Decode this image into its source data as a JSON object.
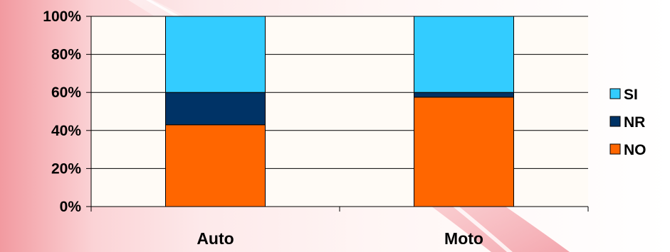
{
  "chart_data": {
    "type": "bar",
    "stacked": true,
    "percent": true,
    "categories": [
      "Auto",
      "Moto"
    ],
    "series": [
      {
        "name": "NO",
        "values": [
          43,
          57.5
        ],
        "color": "#ff6600"
      },
      {
        "name": "NR",
        "values": [
          17,
          2.5
        ],
        "color": "#003366"
      },
      {
        "name": "SI",
        "values": [
          40,
          40
        ],
        "color": "#33ccff"
      }
    ],
    "yticks": [
      "0%",
      "20%",
      "40%",
      "60%",
      "80%",
      "100%"
    ],
    "ylim": [
      0,
      100
    ],
    "grid": true,
    "legend_position": "right",
    "legend_order": [
      "SI",
      "NR",
      "NO"
    ]
  }
}
